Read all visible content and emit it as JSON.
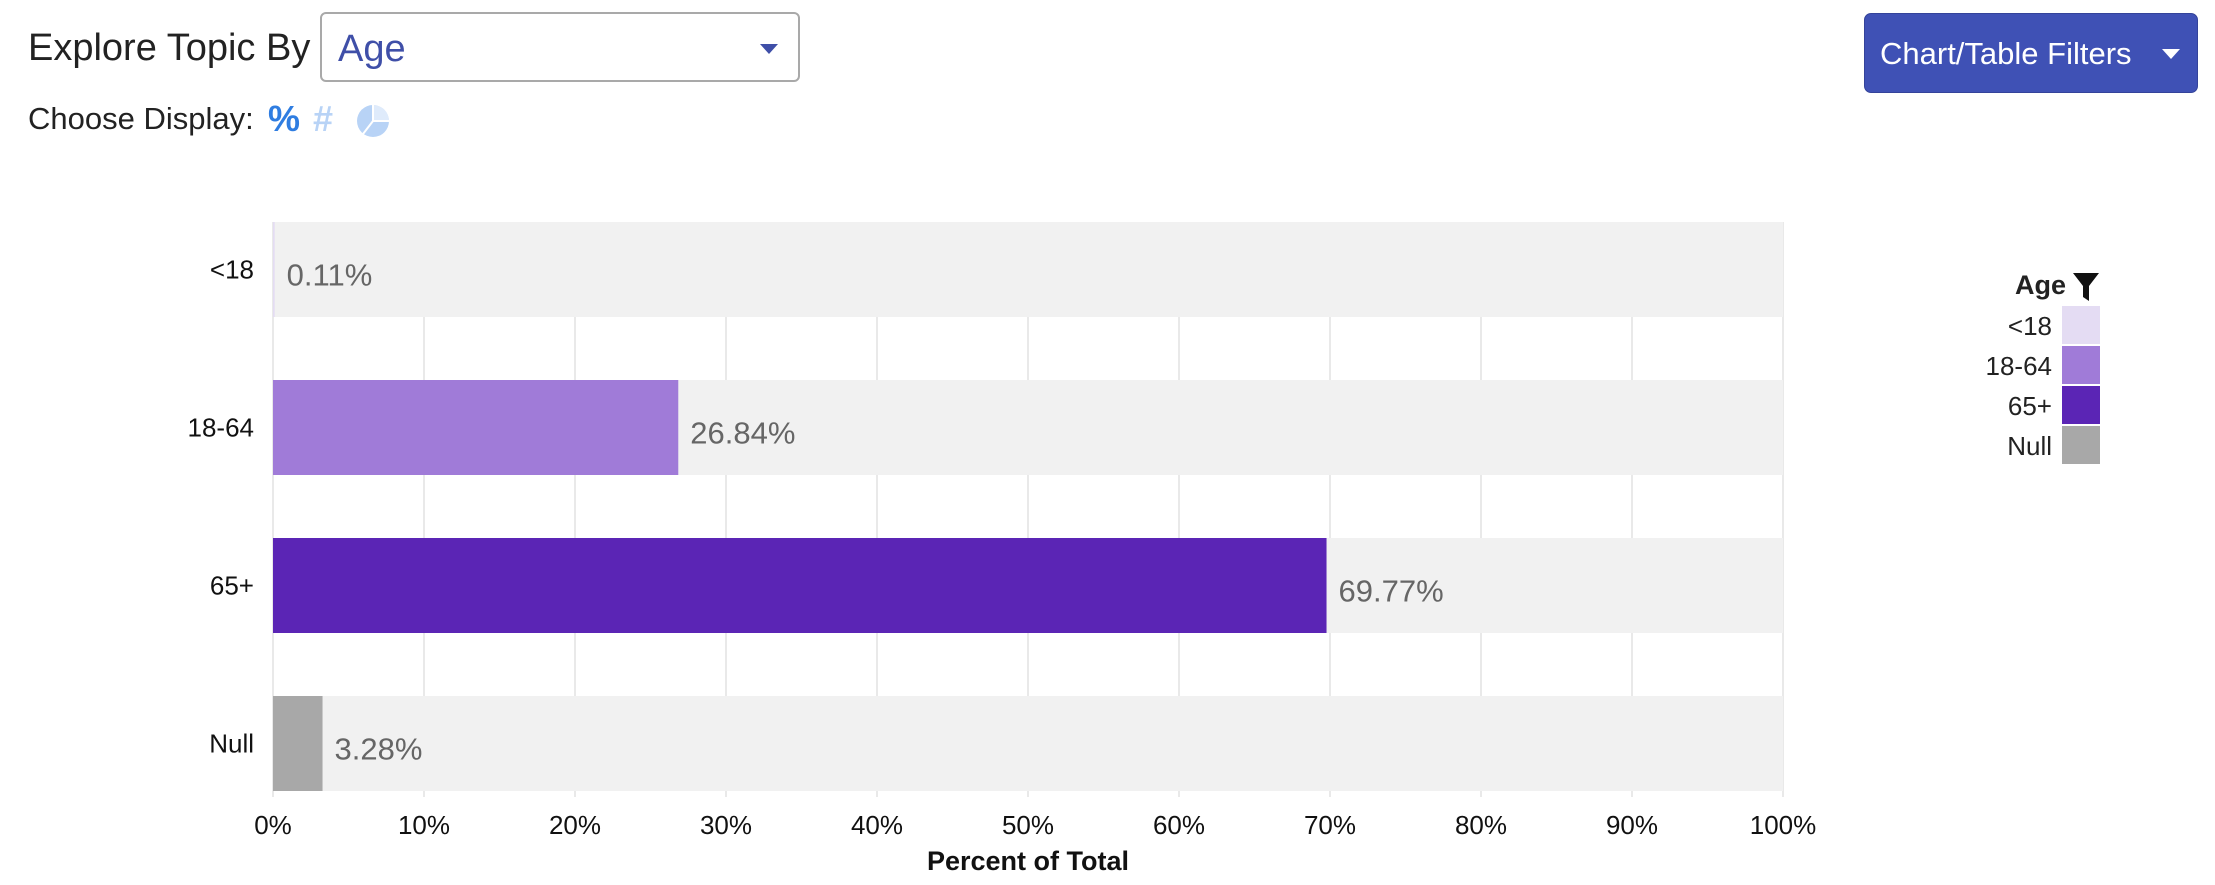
{
  "controls": {
    "explore_label": "Explore Topic By",
    "topic_value": "Age",
    "display_label": "Choose Display:",
    "display_options": [
      {
        "icon": "percent-icon",
        "glyph": "%",
        "active": true
      },
      {
        "icon": "hash-icon",
        "glyph": "#",
        "active": false
      },
      {
        "icon": "pie-chart-icon",
        "glyph": "",
        "active": false
      }
    ],
    "filters_button": "Chart/Table Filters"
  },
  "colors": {
    "accent": "#3f51b5",
    "track": "#f1f1f1",
    "grid": "#e2e2e2"
  },
  "chart_data": {
    "type": "bar",
    "orientation": "horizontal",
    "categories": [
      "<18",
      "18-64",
      "65+",
      "Null"
    ],
    "values": [
      0.11,
      26.84,
      69.77,
      3.28
    ],
    "value_labels": [
      "0.11%",
      "26.84%",
      "69.77%",
      "3.28%"
    ],
    "colors": [
      "#e4dcf3",
      "#a07bd8",
      "#5b25b5",
      "#a8a8a8"
    ],
    "xlabel": "Percent of Total",
    "ylabel": "",
    "xlim": [
      0,
      100
    ],
    "xticks": [
      0,
      10,
      20,
      30,
      40,
      50,
      60,
      70,
      80,
      90,
      100
    ],
    "xtick_labels": [
      "0%",
      "10%",
      "20%",
      "30%",
      "40%",
      "50%",
      "60%",
      "70%",
      "80%",
      "90%",
      "100%"
    ],
    "grid": true,
    "legend": {
      "title": "Age",
      "placement": "right",
      "entries": [
        "<18",
        "18-64",
        "65+",
        "Null"
      ]
    }
  }
}
